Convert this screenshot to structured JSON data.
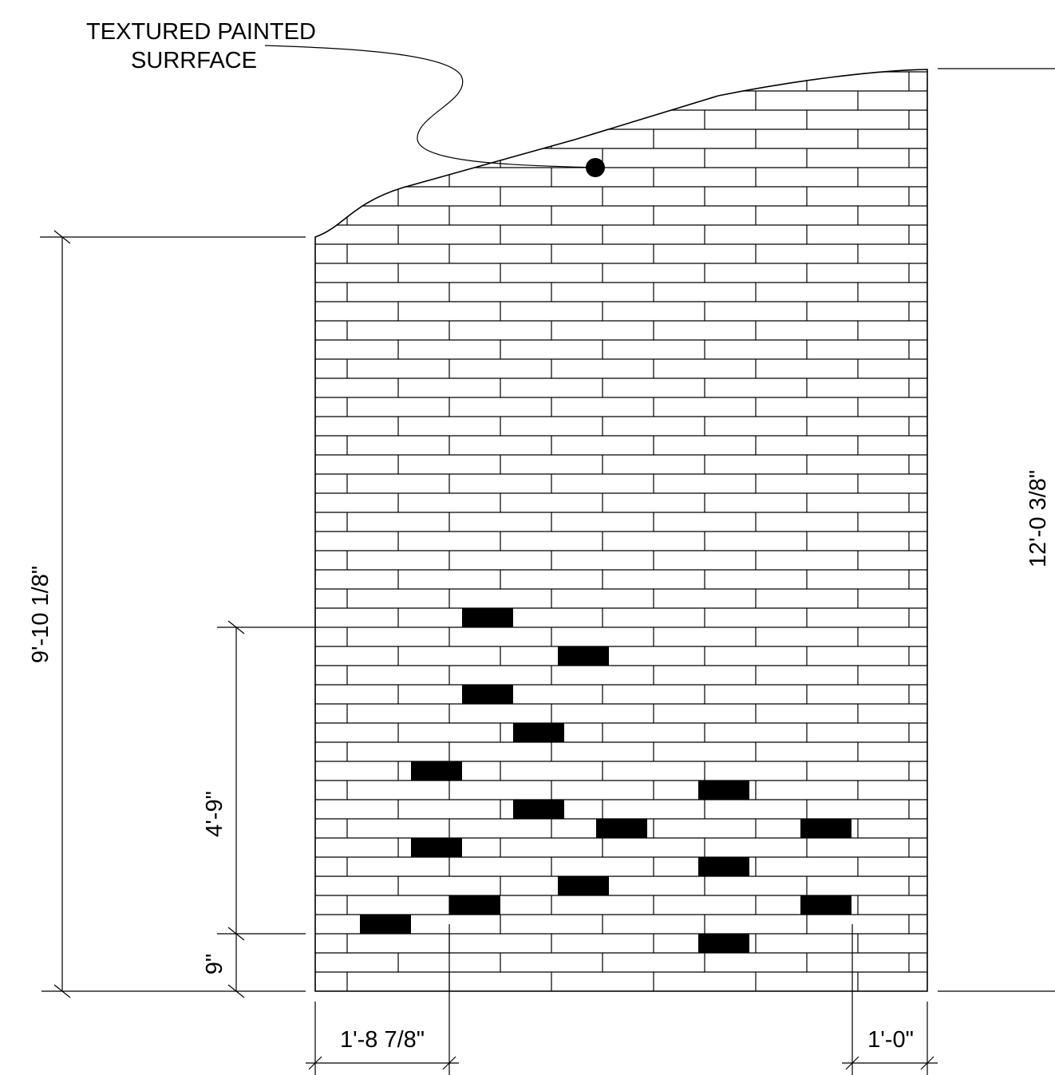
{
  "callout": {
    "line1": "TEXTURED PAINTED",
    "line2": "SURRFACE"
  },
  "dimensions": {
    "left_height": "9'-10 1/8\"",
    "right_height": "12'-0 3/8\"",
    "band_height": "4'-9\"",
    "base_height": "9\"",
    "left_offset": "1'-8 7/8\"",
    "right_offset": "1'-0\""
  },
  "wall": {
    "bond": "running bond brick",
    "accent_brick_color": "#000000",
    "line_color": "#000000"
  }
}
